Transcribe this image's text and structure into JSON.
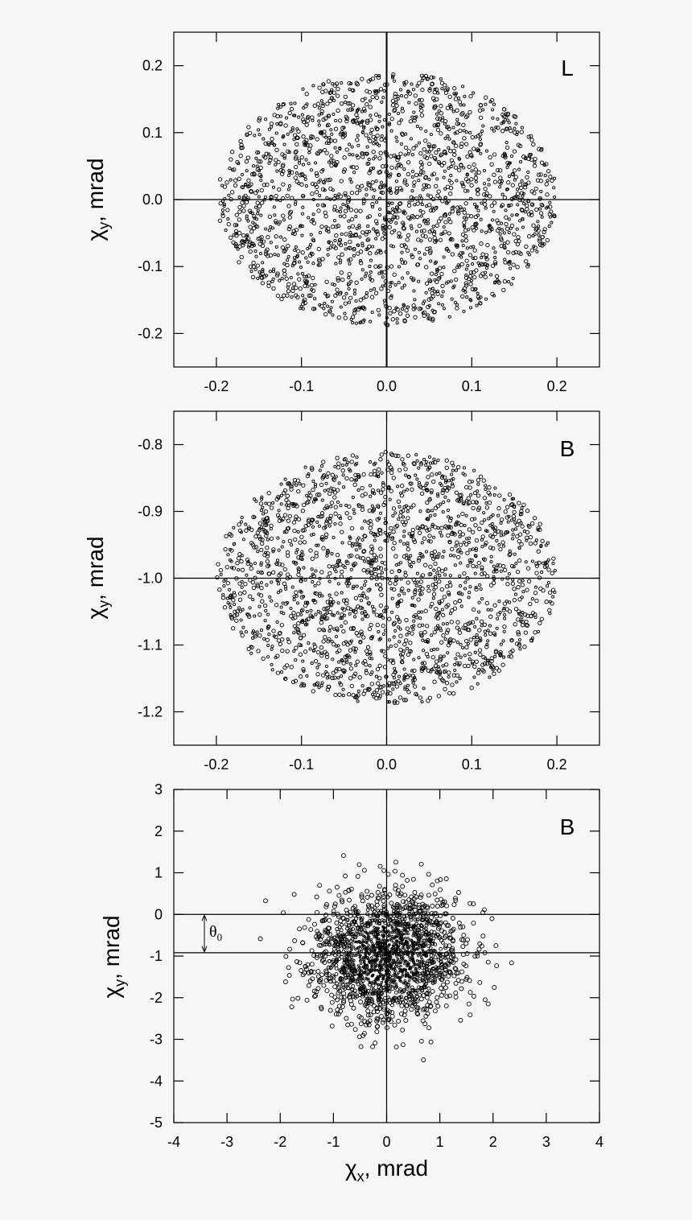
{
  "chart_data": [
    {
      "type": "scatter",
      "panel_label": "L",
      "xlabel": "",
      "ylabel": {
        "main": "χ",
        "sub": "y",
        "rest": ", mrad"
      },
      "xlim": [
        -0.25,
        0.25
      ],
      "ylim": [
        -0.25,
        0.25
      ],
      "xticks": [
        -0.2,
        -0.1,
        0.0,
        0.1,
        0.2
      ],
      "xtick_labels": [
        "-0.2",
        "-0.1",
        "0.0",
        "0.1",
        "0.2"
      ],
      "yticks": [
        -0.2,
        -0.1,
        0.0,
        0.1,
        0.2
      ],
      "ytick_labels": [
        "-0.2",
        "-0.1",
        "0.0",
        "0.1",
        "0.2"
      ],
      "reference_lines": {
        "x": [
          0.0
        ],
        "y": [
          0.0
        ]
      },
      "distribution": {
        "shape": "uniform ellipse",
        "center": [
          0.0,
          0.0
        ],
        "radius_x": 0.2,
        "radius_y": 0.19,
        "approx_points": 2000
      }
    },
    {
      "type": "scatter",
      "panel_label": "B",
      "xlabel": "",
      "ylabel": {
        "main": "χ",
        "sub": "y",
        "rest": ", mrad"
      },
      "xlim": [
        -0.25,
        0.25
      ],
      "ylim": [
        -1.25,
        -0.75
      ],
      "xticks": [
        -0.2,
        -0.1,
        0.0,
        0.1,
        0.2
      ],
      "xtick_labels": [
        "-0.2",
        "-0.1",
        "0.0",
        "0.1",
        "0.2"
      ],
      "yticks": [
        -1.2,
        -1.1,
        -1.0,
        -0.9,
        -0.8
      ],
      "ytick_labels": [
        "-1.2",
        "-1.1",
        "-1.0",
        "-0.9",
        "-0.8"
      ],
      "reference_lines": {
        "x": [
          0.0
        ],
        "y": [
          -1.0
        ]
      },
      "distribution": {
        "shape": "uniform ellipse",
        "center": [
          0.0,
          -1.0
        ],
        "radius_x": 0.2,
        "radius_y": 0.19,
        "approx_points": 2000
      }
    },
    {
      "type": "scatter",
      "panel_label": "B",
      "xlabel": {
        "main": "χ",
        "sub": "x",
        "rest": ", mrad"
      },
      "ylabel": {
        "main": "χ",
        "sub": "y",
        "rest": ", mrad"
      },
      "xlim": [
        -4,
        4
      ],
      "ylim": [
        -5,
        3
      ],
      "xticks": [
        -4,
        -3,
        -2,
        -1,
        0,
        1,
        2,
        3,
        4
      ],
      "xtick_labels": [
        "-4",
        "-3",
        "-2",
        "-1",
        "0",
        "1",
        "2",
        "3",
        "4"
      ],
      "yticks": [
        -5,
        -4,
        -3,
        -2,
        -1,
        0,
        1,
        2,
        3
      ],
      "ytick_labels": [
        "-5",
        "-4",
        "-3",
        "-2",
        "-1",
        "0",
        "1",
        "2",
        "3"
      ],
      "reference_lines": {
        "x": [
          0.0
        ],
        "y": [
          0.0,
          -0.92
        ]
      },
      "annotation": {
        "text": "θ",
        "sub": "0",
        "from_y": 0.0,
        "to_y": -0.92
      },
      "distribution": {
        "shape": "gaussian",
        "center": [
          0.0,
          -1.0
        ],
        "sigma_x": 0.7,
        "sigma_y": 0.75,
        "approx_points": 2000
      }
    }
  ]
}
